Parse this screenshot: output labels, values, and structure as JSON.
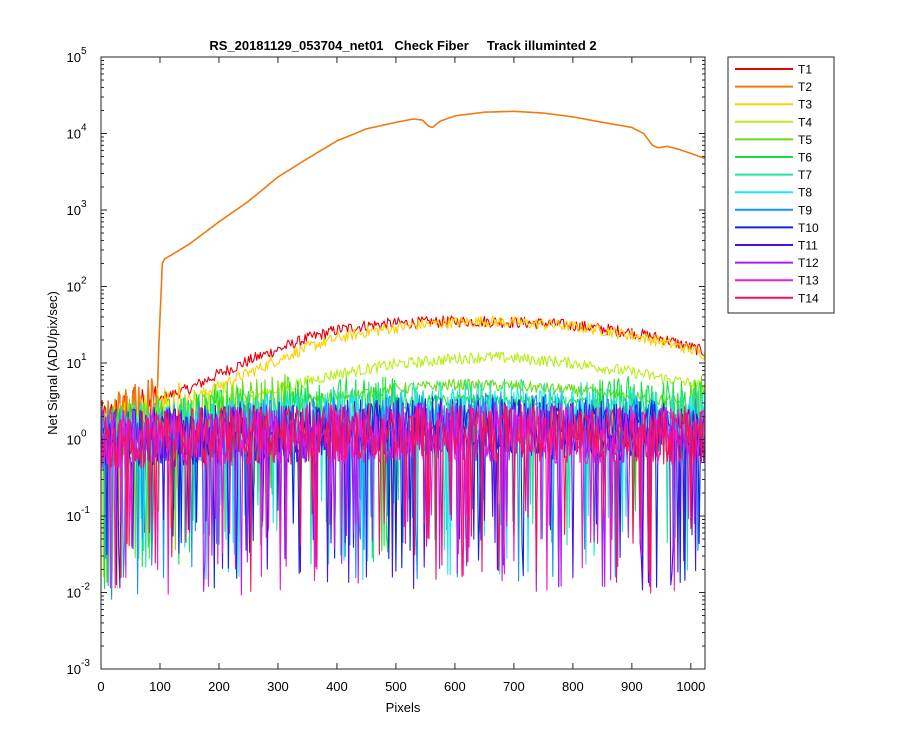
{
  "chart_data": {
    "type": "line",
    "title": "RS_20181129_053704_net01   Check Fiber     Track illuminted 2",
    "xlabel": "Pixels",
    "ylabel": "Net Signal (ADU/pix/sec)",
    "xlim": [
      0,
      1024
    ],
    "ylim": [
      0.001,
      100000
    ],
    "yscale": "log",
    "grid": false,
    "legend_position": "outside-top-right",
    "x_ticks": [
      {
        "value": 0,
        "label": "0"
      },
      {
        "value": 100,
        "label": "100"
      },
      {
        "value": 200,
        "label": "200"
      },
      {
        "value": 300,
        "label": "300"
      },
      {
        "value": 400,
        "label": "400"
      },
      {
        "value": 500,
        "label": "500"
      },
      {
        "value": 600,
        "label": "600"
      },
      {
        "value": 700,
        "label": "700"
      },
      {
        "value": 800,
        "label": "800"
      },
      {
        "value": 900,
        "label": "900"
      },
      {
        "value": 1000,
        "label": "1000"
      }
    ],
    "y_ticks": [
      {
        "value": 0.001,
        "base": "10",
        "exp": "-3"
      },
      {
        "value": 0.01,
        "base": "10",
        "exp": "-2"
      },
      {
        "value": 0.1,
        "base": "10",
        "exp": "-1"
      },
      {
        "value": 1,
        "base": "10",
        "exp": "0"
      },
      {
        "value": 10,
        "base": "10",
        "exp": "1"
      },
      {
        "value": 100,
        "base": "10",
        "exp": "2"
      },
      {
        "value": 1000,
        "base": "10",
        "exp": "3"
      },
      {
        "value": 10000,
        "base": "10",
        "exp": "4"
      },
      {
        "value": 100000,
        "base": "10",
        "exp": "5"
      }
    ],
    "series": [
      {
        "name": "T1",
        "color": "#e8000b",
        "x": [
          0,
          40,
          80,
          95,
          110,
          150,
          200,
          260,
          300,
          350,
          400,
          450,
          500,
          550,
          600,
          650,
          700,
          750,
          800,
          850,
          900,
          950,
          1000,
          1024
        ],
        "y": [
          1.3,
          1.9,
          2.6,
          3.0,
          3.6,
          4.6,
          7.2,
          11.5,
          15,
          21,
          27,
          31,
          33,
          34,
          35,
          35,
          34,
          33,
          31,
          28,
          25,
          21,
          16,
          14
        ]
      },
      {
        "name": "T2",
        "color": "#f07a10",
        "x": [
          0,
          40,
          80,
          95,
          100,
          104,
          108,
          120,
          150,
          200,
          250,
          300,
          350,
          400,
          450,
          500,
          530,
          545,
          555,
          562,
          575,
          600,
          650,
          700,
          750,
          800,
          850,
          900,
          920,
          935,
          945,
          960,
          980,
          1000,
          1024
        ],
        "y": [
          1.3,
          1.9,
          2.6,
          3.2,
          40,
          200,
          230,
          260,
          360,
          700,
          1300,
          2700,
          4700,
          8000,
          11500,
          14000,
          15500,
          15000,
          12500,
          12000,
          14500,
          17000,
          19000,
          19500,
          18500,
          16500,
          14000,
          12000,
          10000,
          7000,
          6500,
          6800,
          6200,
          5500,
          4700
        ]
      },
      {
        "name": "T3",
        "color": "#ffd000",
        "x": [
          0,
          40,
          80,
          100,
          150,
          200,
          260,
          300,
          350,
          400,
          450,
          500,
          550,
          600,
          650,
          700,
          750,
          800,
          850,
          900,
          950,
          1000,
          1024
        ],
        "y": [
          1.0,
          1.5,
          2.0,
          2.4,
          3.3,
          5.0,
          8.0,
          11,
          16,
          21,
          25.5,
          29,
          32,
          34,
          35,
          34,
          32,
          30,
          27,
          23,
          19,
          15,
          13
        ]
      },
      {
        "name": "T4",
        "color": "#b9ee1c",
        "x": [
          0,
          100,
          200,
          300,
          400,
          500,
          600,
          650,
          700,
          800,
          900,
          1000,
          1024
        ],
        "y": [
          1.0,
          1.6,
          2.6,
          4.6,
          7.2,
          9.6,
          11.4,
          12,
          11.6,
          10,
          7.6,
          5.4,
          4.8
        ]
      },
      {
        "name": "T5",
        "color": "#6ddb1a",
        "x": [
          0,
          200,
          400,
          500,
          600,
          700,
          800,
          900,
          1024
        ],
        "y": [
          1.2,
          2.2,
          3.6,
          4.6,
          5.2,
          5.0,
          4.4,
          3.6,
          2.8
        ]
      },
      {
        "name": "T6",
        "color": "#15e040",
        "x": [
          0,
          200,
          400,
          600,
          800,
          1024
        ],
        "y": [
          1.1,
          1.9,
          2.7,
          3.3,
          3.1,
          2.3
        ]
      },
      {
        "name": "T7",
        "color": "#2ae0a8",
        "x": [
          0,
          200,
          400,
          600,
          800,
          1024
        ],
        "y": [
          1.1,
          1.6,
          2.2,
          2.6,
          2.4,
          1.9
        ]
      },
      {
        "name": "T8",
        "color": "#1ce8ee",
        "x": [
          0,
          200,
          400,
          600,
          800,
          1024
        ],
        "y": [
          1.0,
          1.4,
          1.8,
          2.1,
          2.0,
          1.6
        ]
      },
      {
        "name": "T9",
        "color": "#1696f0",
        "x": [
          0,
          200,
          400,
          600,
          800,
          1024
        ],
        "y": [
          1.0,
          1.3,
          1.5,
          1.7,
          1.6,
          1.4
        ]
      },
      {
        "name": "T10",
        "color": "#0b27d8",
        "x": [
          0,
          200,
          400,
          600,
          800,
          1024
        ],
        "y": [
          1.0,
          1.2,
          1.4,
          1.5,
          1.45,
          1.3
        ]
      },
      {
        "name": "T11",
        "color": "#4a12e8",
        "x": [
          0,
          200,
          400,
          600,
          800,
          1024
        ],
        "y": [
          1.0,
          1.15,
          1.3,
          1.4,
          1.35,
          1.2
        ]
      },
      {
        "name": "T12",
        "color": "#b01cf2",
        "x": [
          0,
          200,
          400,
          600,
          800,
          1024
        ],
        "y": [
          1.0,
          1.1,
          1.25,
          1.3,
          1.25,
          1.15
        ]
      },
      {
        "name": "T13",
        "color": "#f01cd0",
        "x": [
          0,
          200,
          400,
          600,
          800,
          1024
        ],
        "y": [
          1.0,
          1.1,
          1.2,
          1.25,
          1.2,
          1.1
        ]
      },
      {
        "name": "T14",
        "color": "#f5125a",
        "x": [
          0,
          200,
          400,
          600,
          800,
          1024
        ],
        "y": [
          1.0,
          1.1,
          1.2,
          1.25,
          1.2,
          1.1
        ]
      }
    ]
  }
}
